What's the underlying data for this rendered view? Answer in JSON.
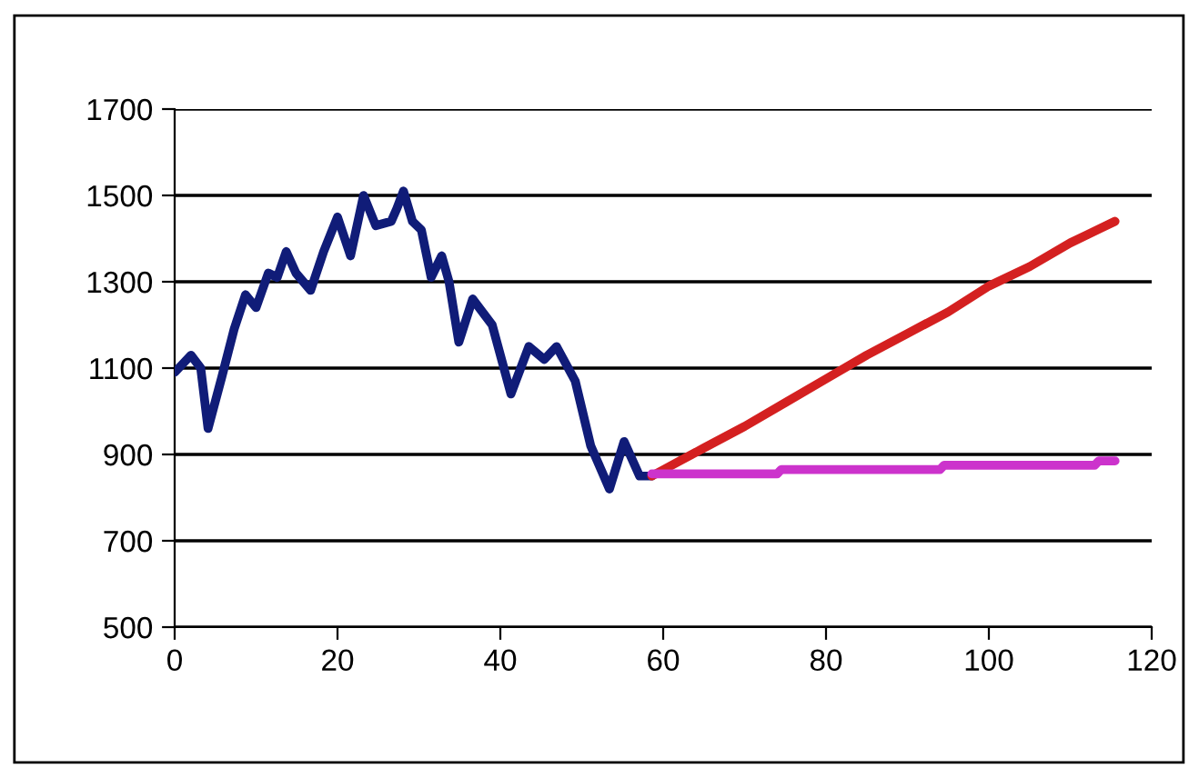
{
  "chart_data": {
    "type": "line",
    "series": [
      {
        "color": "#101c78",
        "x": [
          0,
          2,
          3.2,
          4.1,
          5.8,
          7.3,
          8.7,
          10,
          11.5,
          12.6,
          13.7,
          14.9,
          16.7,
          18.3,
          20,
          21.6,
          23.2,
          24.7,
          26.6,
          27.3,
          28.1,
          29.2,
          30.3,
          31.5,
          32.8,
          33.7,
          34.9,
          36.6,
          39,
          41.3,
          43.5,
          45.4,
          46.9,
          49.2,
          51.1,
          53.4,
          55.2,
          57.1,
          58.6
        ],
        "values": [
          1090,
          1130,
          1100,
          960,
          1080,
          1190,
          1270,
          1240,
          1320,
          1310,
          1370,
          1320,
          1280,
          1370,
          1450,
          1360,
          1500,
          1430,
          1440,
          1470,
          1510,
          1440,
          1420,
          1310,
          1360,
          1300,
          1160,
          1260,
          1200,
          1040,
          1150,
          1120,
          1150,
          1070,
          920,
          820,
          930,
          850,
          850
        ]
      },
      {
        "color": "#d42020",
        "x": [
          58.6,
          65,
          70,
          75,
          80,
          85,
          90,
          95,
          100,
          105,
          110,
          115.5
        ],
        "values": [
          850,
          915,
          965,
          1020,
          1075,
          1130,
          1180,
          1230,
          1290,
          1335,
          1390,
          1440
        ]
      },
      {
        "color": "#cc33cc",
        "x": [
          58.6,
          74,
          74.5,
          94,
          94.5,
          113,
          113.5,
          115.5
        ],
        "values": [
          855,
          855,
          865,
          865,
          875,
          875,
          885,
          885
        ]
      }
    ],
    "xlim": [
      0,
      120
    ],
    "xticks": [
      0,
      20,
      40,
      60,
      80,
      100,
      120
    ],
    "ylim": [
      500,
      1700
    ],
    "yticks": [
      500,
      700,
      900,
      1100,
      1300,
      1500,
      1700
    ],
    "grid": "y",
    "legend": false,
    "marker": "none",
    "line_style": "solid"
  }
}
